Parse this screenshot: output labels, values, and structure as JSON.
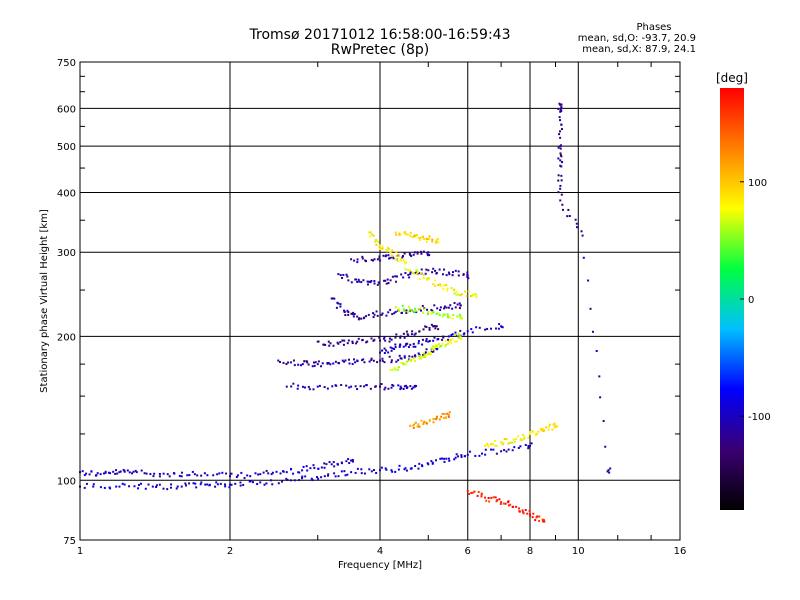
{
  "header": {
    "title": "Tromsø 20171012 16:58:00-16:59:43",
    "subtitle": "RwPretec (8p)"
  },
  "stats": {
    "heading": "Phases",
    "line_o": "mean, sd,O: -93.7, 20.9",
    "line_x": "mean, sd,X:  87.9, 24.1"
  },
  "chart_data": {
    "type": "scatter",
    "title": "Tromsø 20171012 16:58:00-16:59:43",
    "subtitle": "RwPretec (8p)",
    "xlabel": "Frequency [MHz]",
    "ylabel": "Stationary phase Virtual Height [km]",
    "x_scale": "log",
    "y_scale": "log",
    "xlim": [
      1,
      16
    ],
    "ylim": [
      75,
      750
    ],
    "x_ticks": [
      1,
      2,
      4,
      6,
      8,
      10,
      16
    ],
    "y_ticks": [
      75,
      100,
      200,
      300,
      400,
      500,
      600,
      750
    ],
    "grid": true,
    "colorbar": {
      "label": "[deg]",
      "range": [
        -180,
        180
      ],
      "ticks": [
        -100,
        0,
        100
      ],
      "colormap": [
        "#000000",
        "#3a0072",
        "#0000ff",
        "#00bfff",
        "#00ff40",
        "#ffff00",
        "#ff8000",
        "#ff0000"
      ]
    },
    "series": [
      {
        "phase": -100,
        "points": [
          [
            1.0,
            104
          ],
          [
            1.1,
            103
          ],
          [
            1.2,
            104
          ],
          [
            1.3,
            104
          ],
          [
            1.5,
            103
          ],
          [
            1.7,
            103
          ],
          [
            2.0,
            102
          ],
          [
            2.3,
            103
          ],
          [
            2.6,
            104
          ],
          [
            2.9,
            106
          ],
          [
            3.2,
            108
          ],
          [
            3.5,
            110
          ]
        ]
      },
      {
        "phase": -95,
        "points": [
          [
            1.0,
            97
          ],
          [
            1.2,
            97
          ],
          [
            1.4,
            97
          ],
          [
            1.6,
            97
          ],
          [
            1.8,
            98
          ],
          [
            2.0,
            98
          ],
          [
            2.3,
            99
          ],
          [
            2.7,
            100
          ],
          [
            3.1,
            102
          ],
          [
            3.5,
            104
          ],
          [
            4.0,
            105
          ],
          [
            4.5,
            106
          ],
          [
            5.0,
            108
          ],
          [
            5.5,
            111
          ],
          [
            6.0,
            113
          ],
          [
            7.0,
            115
          ],
          [
            8.0,
            118
          ]
        ]
      },
      {
        "phase": -110,
        "points": [
          [
            2.5,
            178
          ],
          [
            2.8,
            175
          ],
          [
            3.0,
            175
          ],
          [
            3.3,
            176
          ],
          [
            3.6,
            178
          ],
          [
            4.0,
            178
          ],
          [
            4.4,
            180
          ],
          [
            4.8,
            183
          ],
          [
            5.2,
            188
          ]
        ]
      },
      {
        "phase": -105,
        "points": [
          [
            2.6,
            157
          ],
          [
            3.0,
            157
          ],
          [
            3.5,
            157
          ],
          [
            4.0,
            157
          ],
          [
            4.4,
            157
          ],
          [
            4.7,
            157
          ]
        ]
      },
      {
        "phase": -120,
        "points": [
          [
            3.0,
            195
          ],
          [
            3.3,
            193
          ],
          [
            3.6,
            195
          ],
          [
            4.0,
            196
          ],
          [
            4.4,
            200
          ],
          [
            4.8,
            205
          ],
          [
            5.2,
            210
          ]
        ]
      },
      {
        "phase": -115,
        "points": [
          [
            3.2,
            240
          ],
          [
            3.4,
            225
          ],
          [
            3.6,
            220
          ],
          [
            3.9,
            222
          ],
          [
            4.3,
            225
          ],
          [
            4.8,
            228
          ],
          [
            5.3,
            230
          ],
          [
            5.8,
            232
          ]
        ]
      },
      {
        "phase": -110,
        "points": [
          [
            3.3,
            270
          ],
          [
            3.6,
            260
          ],
          [
            3.9,
            258
          ],
          [
            4.2,
            262
          ],
          [
            4.6,
            270
          ],
          [
            5.0,
            275
          ],
          [
            5.5,
            272
          ],
          [
            6.0,
            268
          ]
        ]
      },
      {
        "phase": -112,
        "points": [
          [
            3.5,
            290
          ],
          [
            3.9,
            290
          ],
          [
            4.2,
            292
          ],
          [
            4.6,
            296
          ],
          [
            5.0,
            300
          ]
        ]
      },
      {
        "phase": -100,
        "points": [
          [
            4.0,
            185
          ],
          [
            4.3,
            190
          ],
          [
            4.6,
            192
          ],
          [
            5.0,
            195
          ],
          [
            5.5,
            200
          ],
          [
            6.0,
            205
          ],
          [
            7.0,
            210
          ]
        ]
      },
      {
        "phase": 70,
        "points": [
          [
            4.2,
            170
          ],
          [
            4.5,
            175
          ],
          [
            4.8,
            180
          ],
          [
            5.0,
            185
          ],
          [
            5.2,
            190
          ],
          [
            5.5,
            195
          ],
          [
            5.8,
            200
          ]
        ]
      },
      {
        "phase": 80,
        "points": [
          [
            3.8,
            330
          ],
          [
            4.0,
            310
          ],
          [
            4.2,
            300
          ],
          [
            4.4,
            290
          ],
          [
            4.6,
            275
          ],
          [
            4.9,
            265
          ],
          [
            5.3,
            255
          ],
          [
            5.7,
            248
          ],
          [
            6.2,
            245
          ]
        ]
      },
      {
        "phase": 90,
        "points": [
          [
            4.3,
            330
          ],
          [
            4.6,
            325
          ],
          [
            4.9,
            320
          ],
          [
            5.2,
            318
          ]
        ]
      },
      {
        "phase": 60,
        "points": [
          [
            4.3,
            230
          ],
          [
            4.6,
            228
          ],
          [
            5.0,
            225
          ],
          [
            5.4,
            222
          ],
          [
            5.8,
            220
          ]
        ]
      },
      {
        "phase": 120,
        "points": [
          [
            4.6,
            130
          ],
          [
            4.9,
            132
          ],
          [
            5.2,
            135
          ],
          [
            5.5,
            137
          ]
        ]
      },
      {
        "phase": 85,
        "points": [
          [
            6.5,
            118
          ],
          [
            7.0,
            120
          ],
          [
            7.5,
            122
          ],
          [
            8.0,
            125
          ],
          [
            8.5,
            128
          ],
          [
            9.0,
            130
          ]
        ]
      },
      {
        "phase": 170,
        "points": [
          [
            6.0,
            95
          ],
          [
            6.5,
            92
          ],
          [
            7.0,
            90
          ],
          [
            7.5,
            88
          ],
          [
            8.0,
            85
          ],
          [
            8.5,
            82
          ]
        ]
      },
      {
        "phase": -120,
        "points": [
          [
            9.2,
            610
          ],
          [
            9.2,
            590
          ],
          [
            9.2,
            500
          ],
          [
            9.2,
            455
          ],
          [
            9.2,
            385
          ],
          [
            10.2,
            325
          ],
          [
            11.5,
            105
          ]
        ]
      }
    ]
  }
}
